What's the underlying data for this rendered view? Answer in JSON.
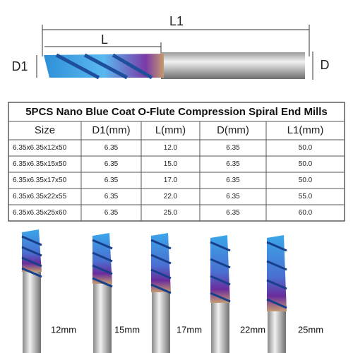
{
  "diagram": {
    "overall_length": "L1",
    "flute_length": "L",
    "cutting_diameter": "D1",
    "shank_diameter": "D"
  },
  "table": {
    "title": "5PCS Nano Blue Coat O-Flute Compression Spiral End Mills",
    "header": [
      "Size",
      "D1(mm)",
      "L(mm)",
      "D(mm)",
      "L1(mm)"
    ],
    "rows": [
      [
        "6.35x6.35x12x50",
        "6.35",
        "12.0",
        "6.35",
        "50.0"
      ],
      [
        "6.35x6.35x15x50",
        "6.35",
        "15.0",
        "6.35",
        "50.0"
      ],
      [
        "6.35x6.35x17x50",
        "6.35",
        "17.0",
        "6.35",
        "50.0"
      ],
      [
        "6.35x6.35x22x55",
        "6.35",
        "22.0",
        "6.35",
        "55.0"
      ],
      [
        "6.35x6.35x25x60",
        "6.35",
        "25.0",
        "6.35",
        "60.0"
      ]
    ]
  },
  "photos": {
    "labels": [
      "12mm",
      "15mm",
      "17mm",
      "22mm",
      "25mm"
    ]
  }
}
